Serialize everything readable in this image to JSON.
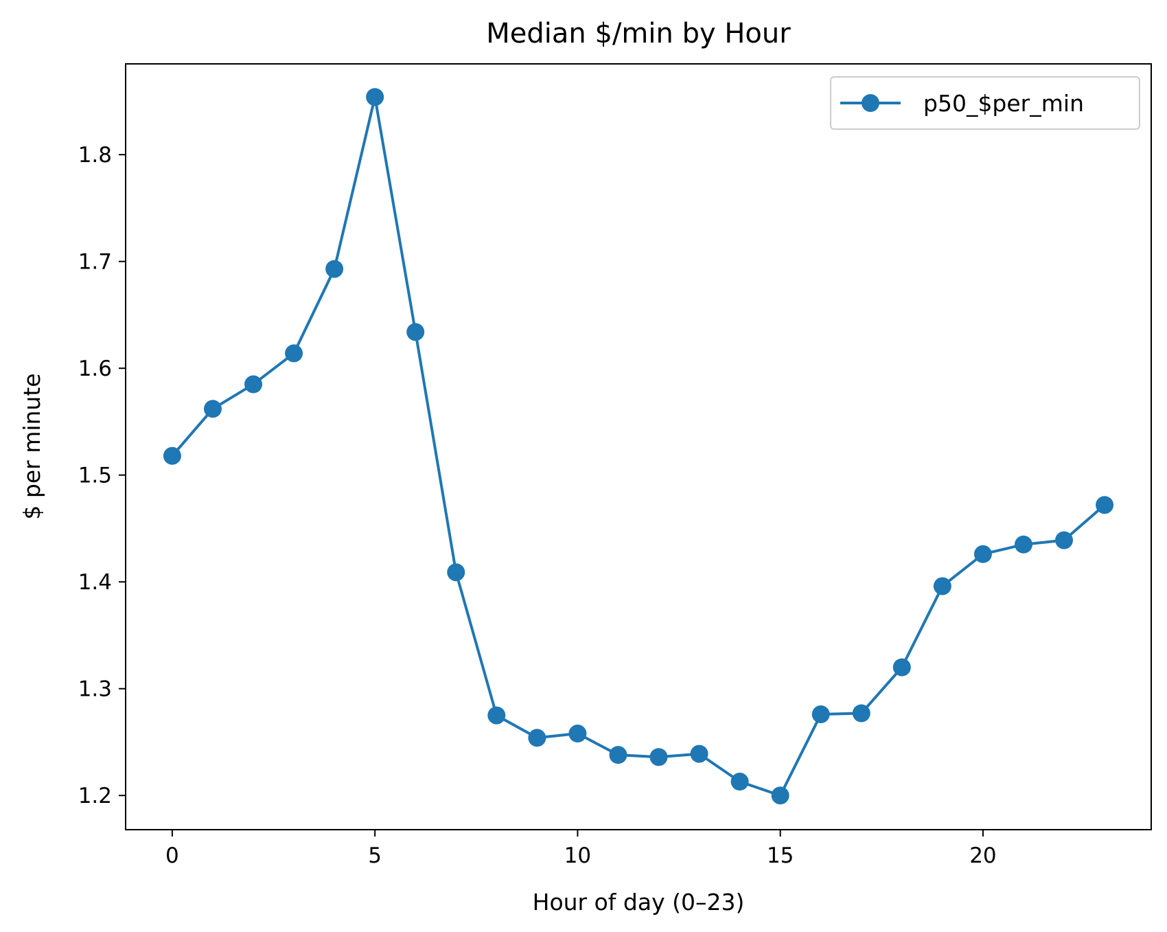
{
  "chart_data": {
    "type": "line",
    "title": "Median $/min by Hour",
    "xlabel": "Hour of day (0–23)",
    "ylabel": "$ per minute",
    "xlim": [
      -1.15,
      24.15
    ],
    "ylim": [
      1.168,
      1.885
    ],
    "xticks": [
      0,
      5,
      10,
      15,
      20
    ],
    "xtick_labels": [
      "0",
      "5",
      "10",
      "15",
      "20"
    ],
    "yticks": [
      1.2,
      1.3,
      1.4,
      1.5,
      1.6,
      1.7,
      1.8
    ],
    "ytick_labels": [
      "1.2",
      "1.3",
      "1.4",
      "1.5",
      "1.6",
      "1.7",
      "1.8"
    ],
    "grid": false,
    "legend_position": "top-right",
    "x": [
      0,
      1,
      2,
      3,
      4,
      5,
      6,
      7,
      8,
      9,
      10,
      11,
      12,
      13,
      14,
      15,
      16,
      17,
      18,
      19,
      20,
      21,
      22,
      23
    ],
    "series": [
      {
        "name": "p50_$per_min",
        "color": "#1f77b4",
        "marker": "circle",
        "values": [
          1.518,
          1.562,
          1.585,
          1.614,
          1.693,
          1.854,
          1.634,
          1.409,
          1.275,
          1.254,
          1.258,
          1.238,
          1.236,
          1.239,
          1.213,
          1.2,
          1.276,
          1.277,
          1.32,
          1.396,
          1.426,
          1.435,
          1.439,
          1.472
        ]
      }
    ]
  }
}
